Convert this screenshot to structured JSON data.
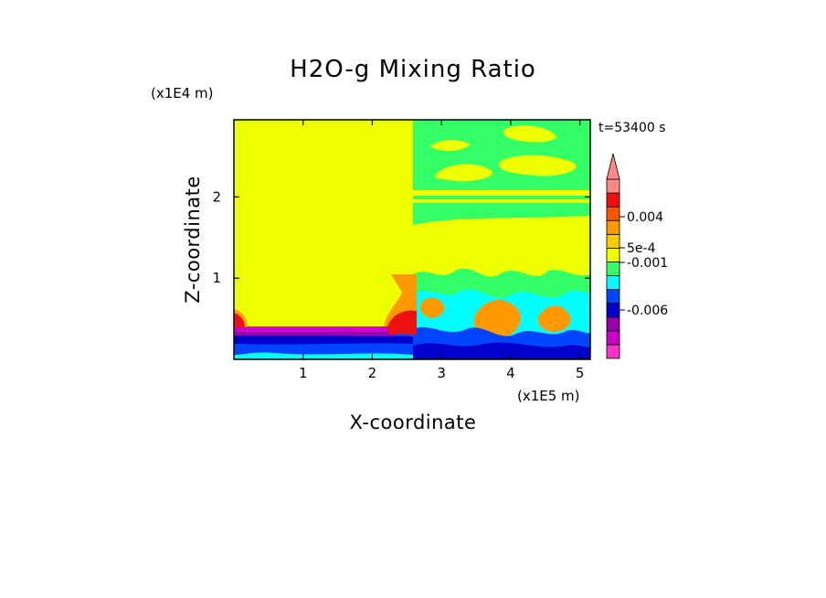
{
  "chart_data": {
    "type": "heatmap",
    "title": "H2O-g Mixing Ratio",
    "xlabel": "X-coordinate",
    "ylabel": "Z-coordinate",
    "x_unit": "(x1E5 m)",
    "y_unit": "(x1E4 m)",
    "time_label": "t=53400 s",
    "xlim": [
      0,
      5.15
    ],
    "ylim": [
      0,
      2.95
    ],
    "x_ticks": [
      "1",
      "2",
      "3",
      "4",
      "5"
    ],
    "y_ticks": [
      "1",
      "2"
    ],
    "grid": false,
    "colorbar": {
      "position": "right",
      "extend": "max",
      "levels": [
        {
          "color": "#ff33cc"
        },
        {
          "color": "#cc00cc"
        },
        {
          "color": "#9900aa"
        },
        {
          "color": "#0000cc"
        },
        {
          "color": "#0044ff"
        },
        {
          "color": "#00ffff"
        },
        {
          "color": "#33ff66"
        },
        {
          "color": "#eeff00"
        },
        {
          "color": "#ffcc00"
        },
        {
          "color": "#ff9900"
        },
        {
          "color": "#ff5500"
        },
        {
          "color": "#ee1111"
        },
        {
          "color": "#ff8888"
        }
      ],
      "labels": [
        "0.004",
        "5e-4",
        "-0.001",
        "-0.006"
      ]
    },
    "field_colors": {
      "background": "#eeff00",
      "moist": "#33ff66",
      "orange": "#ff9900",
      "cyan": "#00ffff",
      "blue": "#0044ff",
      "navy": "#0000cc",
      "purple": "#9900aa",
      "magenta": "#cc00cc",
      "red": "#ee1111"
    }
  }
}
